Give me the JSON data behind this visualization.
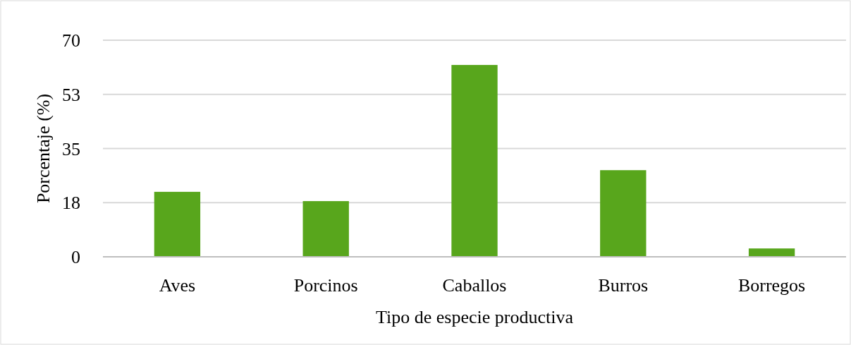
{
  "chart_data": {
    "type": "bar",
    "xlabel": "Tipo de especie productiva",
    "ylabel": "Porcentaje (%)",
    "categories": [
      "Aves",
      "Porcinos",
      "Caballos",
      "Burros",
      "Borregos"
    ],
    "values": [
      21,
      18,
      62,
      28,
      2.7
    ],
    "color": "#58a61c",
    "ylim": [
      0,
      70
    ],
    "yticks": [
      0,
      {
        "value": 17.5,
        "label": "18"
      },
      35,
      {
        "value": 52.5,
        "label": "53"
      },
      70
    ],
    "grid": "y"
  }
}
